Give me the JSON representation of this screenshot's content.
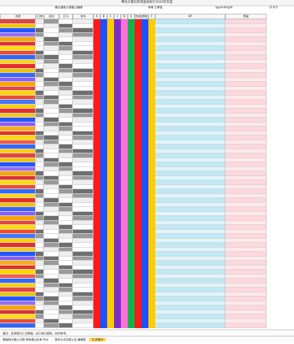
{
  "sheet": {
    "title": "腾讯大厦问卷调查表统计2020年年度",
    "hdr_left": "最佳漫画大赛截止编辑",
    "hdr_mid": "待审  已审批",
    "hdr_right1": "appendnight",
    "hdr_right2": "12.8.5",
    "columns": [
      "名称",
      "已审的",
      "初次",
      "打卡",
      "发布",
      "A",
      "B",
      "C",
      "C",
      "D",
      "E",
      "完成",
      "审批",
      "F",
      "HP",
      "等级"
    ],
    "footer1": "备注：此表格为汇总数据，由于每日更新，仅供参考。",
    "footer2": "数据统计截止日期  审核通过名单  共计",
    "footer3": "联系方式见群公告 编辑部",
    "footer_highlight": "汇总统计"
  },
  "colors": {
    "red": "#ff1a1a",
    "blue": "#1e50ff",
    "yellow": "#ffcc00",
    "purple": "#7a2fc9",
    "pink": "#ff6fd8",
    "green": "#14b34a",
    "light_blue": "#bfe9f5",
    "light_pink": "#ffd7dd"
  }
}
